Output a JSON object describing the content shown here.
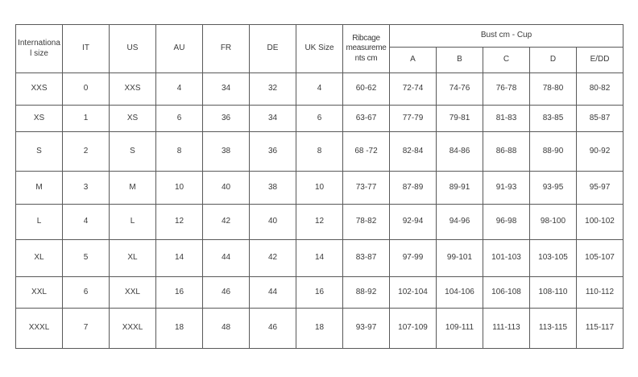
{
  "chart_data": {
    "type": "table",
    "column_groups": [
      {
        "label": "Bust cm - Cup",
        "spans_columns": [
          "A",
          "B",
          "C",
          "D",
          "E/DD"
        ]
      }
    ],
    "columns": [
      "International size",
      "IT",
      "US",
      "AU",
      "FR",
      "DE",
      "UK Size",
      "Ribcage measurements cm",
      "A",
      "B",
      "C",
      "D",
      "E/DD"
    ],
    "rows": [
      [
        "XXS",
        "0",
        "XXS",
        "4",
        "34",
        "32",
        "4",
        "60-62",
        "72-74",
        "74-76",
        "76-78",
        "78-80",
        "80-82"
      ],
      [
        "XS",
        "1",
        "XS",
        "6",
        "36",
        "34",
        "6",
        "63-67",
        "77-79",
        "79-81",
        "81-83",
        "83-85",
        "85-87"
      ],
      [
        "S",
        "2",
        "S",
        "8",
        "38",
        "36",
        "8",
        "68 -72",
        "82-84",
        "84-86",
        "86-88",
        "88-90",
        "90-92"
      ],
      [
        "M",
        "3",
        "M",
        "10",
        "40",
        "38",
        "10",
        "73-77",
        "87-89",
        "89-91",
        "91-93",
        "93-95",
        "95-97"
      ],
      [
        "L",
        "4",
        "L",
        "12",
        "42",
        "40",
        "12",
        "78-82",
        "92-94",
        "94-96",
        "96-98",
        "98-100",
        "100-102"
      ],
      [
        "XL",
        "5",
        "XL",
        "14",
        "44",
        "42",
        "14",
        "83-87",
        "97-99",
        "99-101",
        "101-103",
        "103-105",
        "105-107"
      ],
      [
        "XXL",
        "6",
        "XXL",
        "16",
        "46",
        "44",
        "16",
        "88-92",
        "102-104",
        "104-106",
        "106-108",
        "108-110",
        "110-112"
      ],
      [
        "XXXL",
        "7",
        "XXXL",
        "18",
        "48",
        "46",
        "18",
        "93-97",
        "107-109",
        "109-111",
        "111-113",
        "113-115",
        "115-117"
      ]
    ],
    "border_color": "#595959",
    "text_color": "#3a3a3a",
    "background_color": "#ffffff"
  }
}
